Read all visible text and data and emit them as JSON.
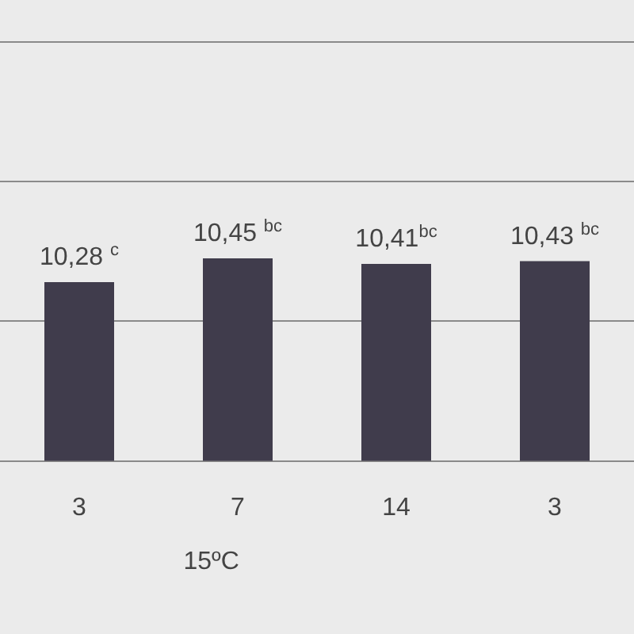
{
  "chart_data": {
    "type": "bar",
    "categories": [
      "3",
      "7",
      "14",
      "3"
    ],
    "values": [
      10.28,
      10.45,
      10.41,
      10.43
    ],
    "value_labels": [
      "10,28 $^{c}$",
      "10,45 $^{bc}$",
      "10,41$^{bc}$",
      "10,43 $^{bc}$"
    ],
    "color": "#403c4c",
    "ylim": [
      9,
      12.3
    ],
    "yticks": [
      {
        "value": 9,
        "label": null
      },
      {
        "value": 10,
        "label": null
      },
      {
        "value": 11,
        "label": null
      },
      {
        "value": 12,
        "label": null
      }
    ],
    "tick_labels": "x",
    "grid": "y",
    "legend": false,
    "annotations": [
      "15ºC"
    ]
  }
}
